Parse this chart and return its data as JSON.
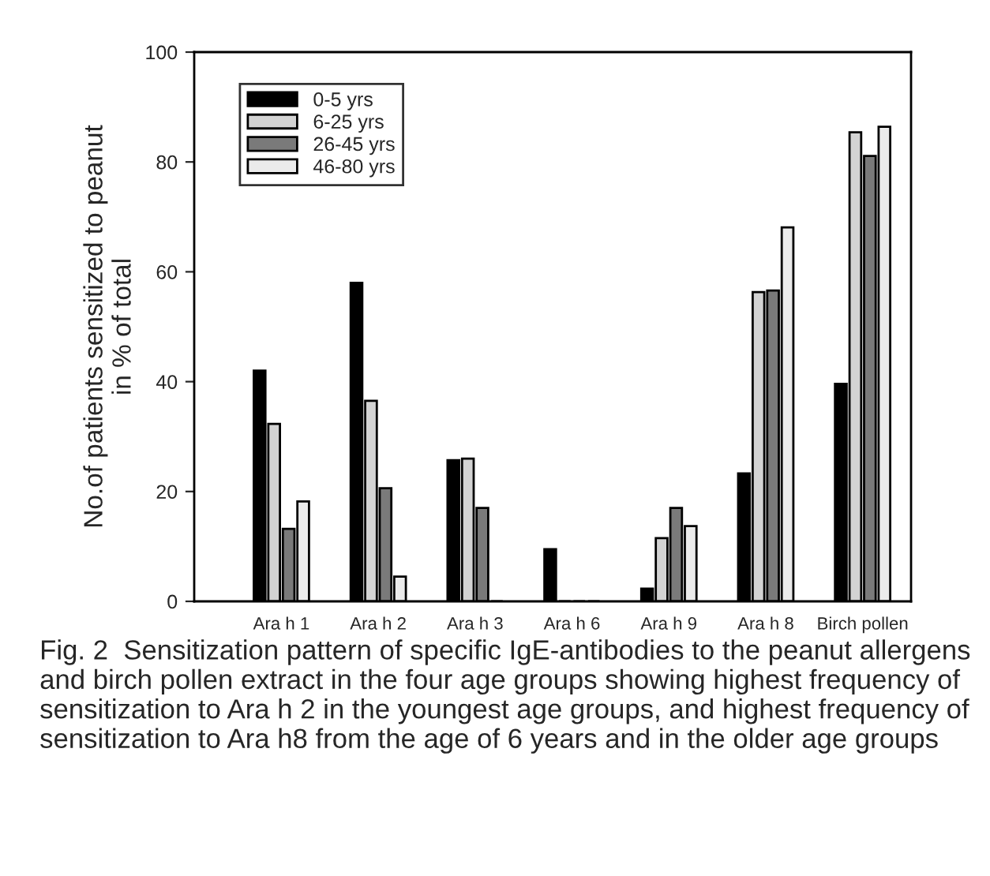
{
  "chart_data": {
    "type": "bar",
    "ylabel": "No.of patients sensitized to peanut\nin % of total",
    "categories": [
      "Ara h 1",
      "Ara h 2",
      "Ara h 3",
      "Ara h 6",
      "Ara h 9",
      "Ara h 8",
      "Birch pollen"
    ],
    "series": [
      {
        "name": "0-5 yrs",
        "color": "#000000",
        "values": [
          42,
          58,
          25.7,
          9.5,
          2.3,
          23.3,
          39.6
        ]
      },
      {
        "name": "6-25 yrs",
        "color": "#d3d3d3",
        "values": [
          32.3,
          36.5,
          26,
          0,
          11.5,
          56.3,
          85.4
        ]
      },
      {
        "name": "26-45 yrs",
        "color": "#7a7a7a",
        "values": [
          13.2,
          20.6,
          17,
          0,
          17,
          56.6,
          81.1
        ]
      },
      {
        "name": "46-80 yrs",
        "color": "#ebebeb",
        "values": [
          18.2,
          4.5,
          0,
          0,
          13.7,
          68.1,
          86.4
        ]
      }
    ],
    "ylim": [
      0,
      100
    ],
    "yticks": [
      0,
      20,
      40,
      60,
      80,
      100
    ],
    "grid": false,
    "legend": "top left",
    "annotations": [
      "Fig. 2  Sensitization pattern of specific IgE-antibodies to the peanut allergens and birch pollen extract in the four age groups showing highest frequency of sensitization to Ara h 2 in the youngest age groups, and highest frequency of sensitization to Ara h8 from the age of 6 years and in the older age groups"
    ]
  }
}
